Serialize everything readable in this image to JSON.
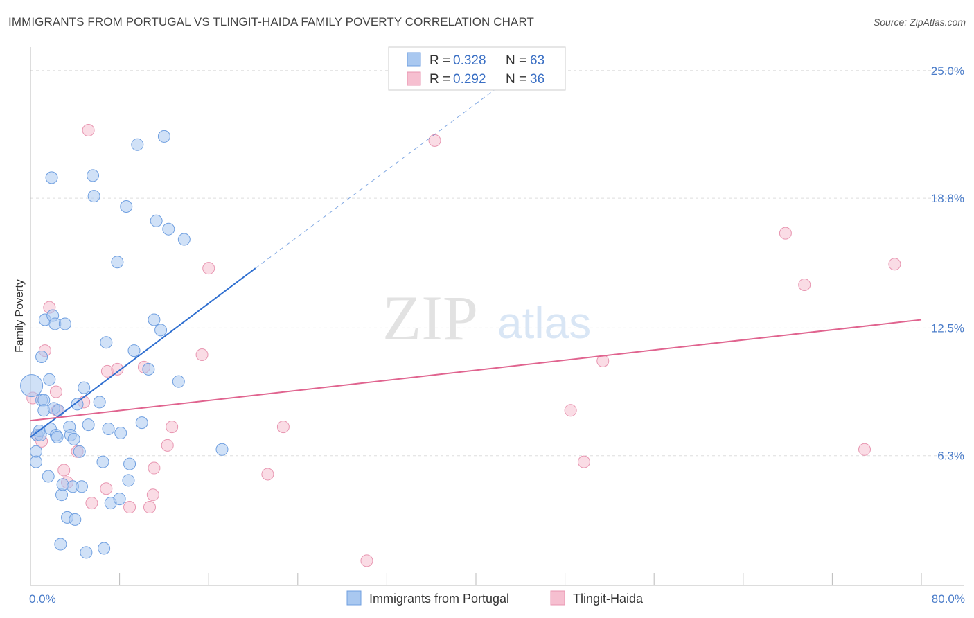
{
  "header": {
    "title": "IMMIGRANTS FROM PORTUGAL VS TLINGIT-HAIDA FAMILY POVERTY CORRELATION CHART",
    "source": "Source: ZipAtlas.com"
  },
  "watermark": {
    "part1": "ZIP",
    "part2": "atlas"
  },
  "colors": {
    "blue_fill": "#a9c8f0",
    "blue_stroke": "#6f9fe0",
    "blue_line": "#2f6fd0",
    "pink_fill": "#f6bfd0",
    "pink_stroke": "#e896b1",
    "pink_line": "#e0648f",
    "grid": "#dddddd"
  },
  "legend": {
    "rows": [
      {
        "r_label": "R = ",
        "r_value": "0.328",
        "n_label": "N = ",
        "n_value": "63"
      },
      {
        "r_label": "R = ",
        "r_value": "0.292",
        "n_label": "N = ",
        "n_value": "36"
      }
    ]
  },
  "chart_data": {
    "type": "scatter",
    "title": "IMMIGRANTS FROM PORTUGAL VS TLINGIT-HAIDA FAMILY POVERTY CORRELATION CHART",
    "xlabel": "",
    "ylabel": "Family Poverty",
    "xlim": [
      0,
      80
    ],
    "ylim": [
      0,
      25.8
    ],
    "x_tick_labels": [
      "0.0%",
      "80.0%"
    ],
    "y_ticks": [
      6.3,
      12.5,
      18.8,
      25.0
    ],
    "y_tick_labels": [
      "6.3%",
      "12.5%",
      "18.8%",
      "25.0%"
    ],
    "legend_position": "bottom",
    "series": [
      {
        "name": "Immigrants from Portugal",
        "color": "#a9c8f0",
        "trend": {
          "x0": 0,
          "y0": 7.2,
          "x1": 20.2,
          "y1": 15.4,
          "dash_to_x": 42,
          "dash_to_y": 24.2
        },
        "points": [
          [
            0.1,
            9.7
          ],
          [
            0.5,
            6.5
          ],
          [
            0.5,
            6.0
          ],
          [
            0.6,
            7.3
          ],
          [
            0.8,
            7.5
          ],
          [
            0.9,
            7.3
          ],
          [
            1.0,
            9.0
          ],
          [
            1.0,
            11.1
          ],
          [
            1.2,
            9.0
          ],
          [
            1.2,
            8.5
          ],
          [
            1.3,
            12.9
          ],
          [
            1.6,
            5.3
          ],
          [
            1.7,
            10.0
          ],
          [
            1.8,
            7.6
          ],
          [
            1.9,
            19.8
          ],
          [
            2.0,
            13.1
          ],
          [
            2.1,
            8.6
          ],
          [
            2.2,
            12.7
          ],
          [
            2.3,
            7.3
          ],
          [
            2.4,
            7.2
          ],
          [
            2.5,
            8.5
          ],
          [
            2.7,
            2.0
          ],
          [
            2.8,
            4.4
          ],
          [
            2.9,
            4.9
          ],
          [
            3.1,
            12.7
          ],
          [
            3.3,
            3.3
          ],
          [
            3.5,
            7.7
          ],
          [
            3.6,
            7.3
          ],
          [
            3.8,
            4.8
          ],
          [
            3.9,
            7.1
          ],
          [
            4.0,
            3.2
          ],
          [
            4.2,
            8.8
          ],
          [
            4.4,
            6.5
          ],
          [
            4.6,
            4.8
          ],
          [
            4.8,
            9.6
          ],
          [
            5.0,
            1.6
          ],
          [
            5.2,
            7.8
          ],
          [
            5.6,
            19.9
          ],
          [
            5.7,
            18.9
          ],
          [
            6.2,
            8.9
          ],
          [
            6.5,
            6.0
          ],
          [
            6.6,
            1.8
          ],
          [
            6.8,
            11.8
          ],
          [
            7.0,
            7.6
          ],
          [
            7.2,
            4.0
          ],
          [
            7.8,
            15.7
          ],
          [
            8.0,
            4.2
          ],
          [
            8.1,
            7.4
          ],
          [
            8.6,
            18.4
          ],
          [
            8.8,
            5.1
          ],
          [
            8.9,
            5.9
          ],
          [
            9.3,
            11.4
          ],
          [
            9.6,
            21.4
          ],
          [
            10.0,
            7.9
          ],
          [
            10.6,
            10.5
          ],
          [
            11.1,
            12.9
          ],
          [
            11.3,
            17.7
          ],
          [
            11.7,
            12.4
          ],
          [
            12.0,
            21.8
          ],
          [
            12.4,
            17.3
          ],
          [
            13.3,
            9.9
          ],
          [
            13.8,
            16.8
          ],
          [
            17.2,
            6.6
          ]
        ]
      },
      {
        "name": "Tlingit-Haida",
        "color": "#f6bfd0",
        "trend": {
          "x0": 0,
          "y0": 8.0,
          "x1": 80,
          "y1": 12.9
        },
        "points": [
          [
            0.2,
            9.1
          ],
          [
            0.6,
            7.3
          ],
          [
            1.0,
            7.0
          ],
          [
            1.3,
            11.4
          ],
          [
            1.7,
            13.5
          ],
          [
            2.3,
            9.4
          ],
          [
            2.4,
            8.5
          ],
          [
            3.0,
            5.6
          ],
          [
            3.3,
            5.0
          ],
          [
            4.2,
            6.5
          ],
          [
            4.8,
            8.9
          ],
          [
            5.5,
            4.0
          ],
          [
            5.2,
            22.1
          ],
          [
            6.8,
            4.7
          ],
          [
            6.9,
            10.4
          ],
          [
            7.8,
            10.5
          ],
          [
            8.9,
            3.8
          ],
          [
            10.2,
            10.6
          ],
          [
            10.7,
            3.8
          ],
          [
            11.0,
            4.4
          ],
          [
            11.1,
            5.7
          ],
          [
            12.3,
            6.8
          ],
          [
            12.7,
            7.7
          ],
          [
            15.4,
            11.2
          ],
          [
            16.0,
            15.4
          ],
          [
            21.3,
            5.4
          ],
          [
            22.7,
            7.7
          ],
          [
            30.2,
            1.2
          ],
          [
            36.3,
            21.6
          ],
          [
            48.5,
            8.5
          ],
          [
            49.7,
            6.0
          ],
          [
            51.4,
            10.9
          ],
          [
            67.8,
            17.1
          ],
          [
            69.5,
            14.6
          ],
          [
            74.9,
            6.6
          ],
          [
            77.6,
            15.6
          ]
        ]
      }
    ]
  }
}
